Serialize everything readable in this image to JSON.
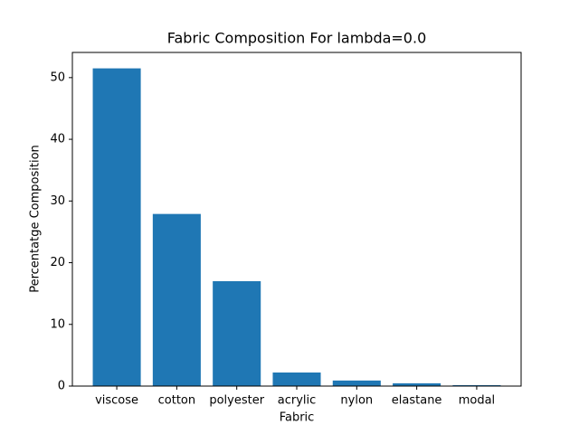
{
  "chart_data": {
    "type": "bar",
    "title": "Fabric Composition For lambda=0.0",
    "x_label": "Fabric",
    "y_label": "Percentatge Composition",
    "categories": [
      "viscose",
      "cotton",
      "polyester",
      "acrylic",
      "nylon",
      "elastane",
      "modal"
    ],
    "values": [
      51.5,
      27.9,
      17.0,
      2.2,
      0.9,
      0.45,
      0.15
    ],
    "color": "#1f77b4",
    "ylim": [
      0,
      54.08
    ],
    "yticks": [
      0,
      10,
      20,
      30,
      40,
      50
    ],
    "grid": false
  }
}
